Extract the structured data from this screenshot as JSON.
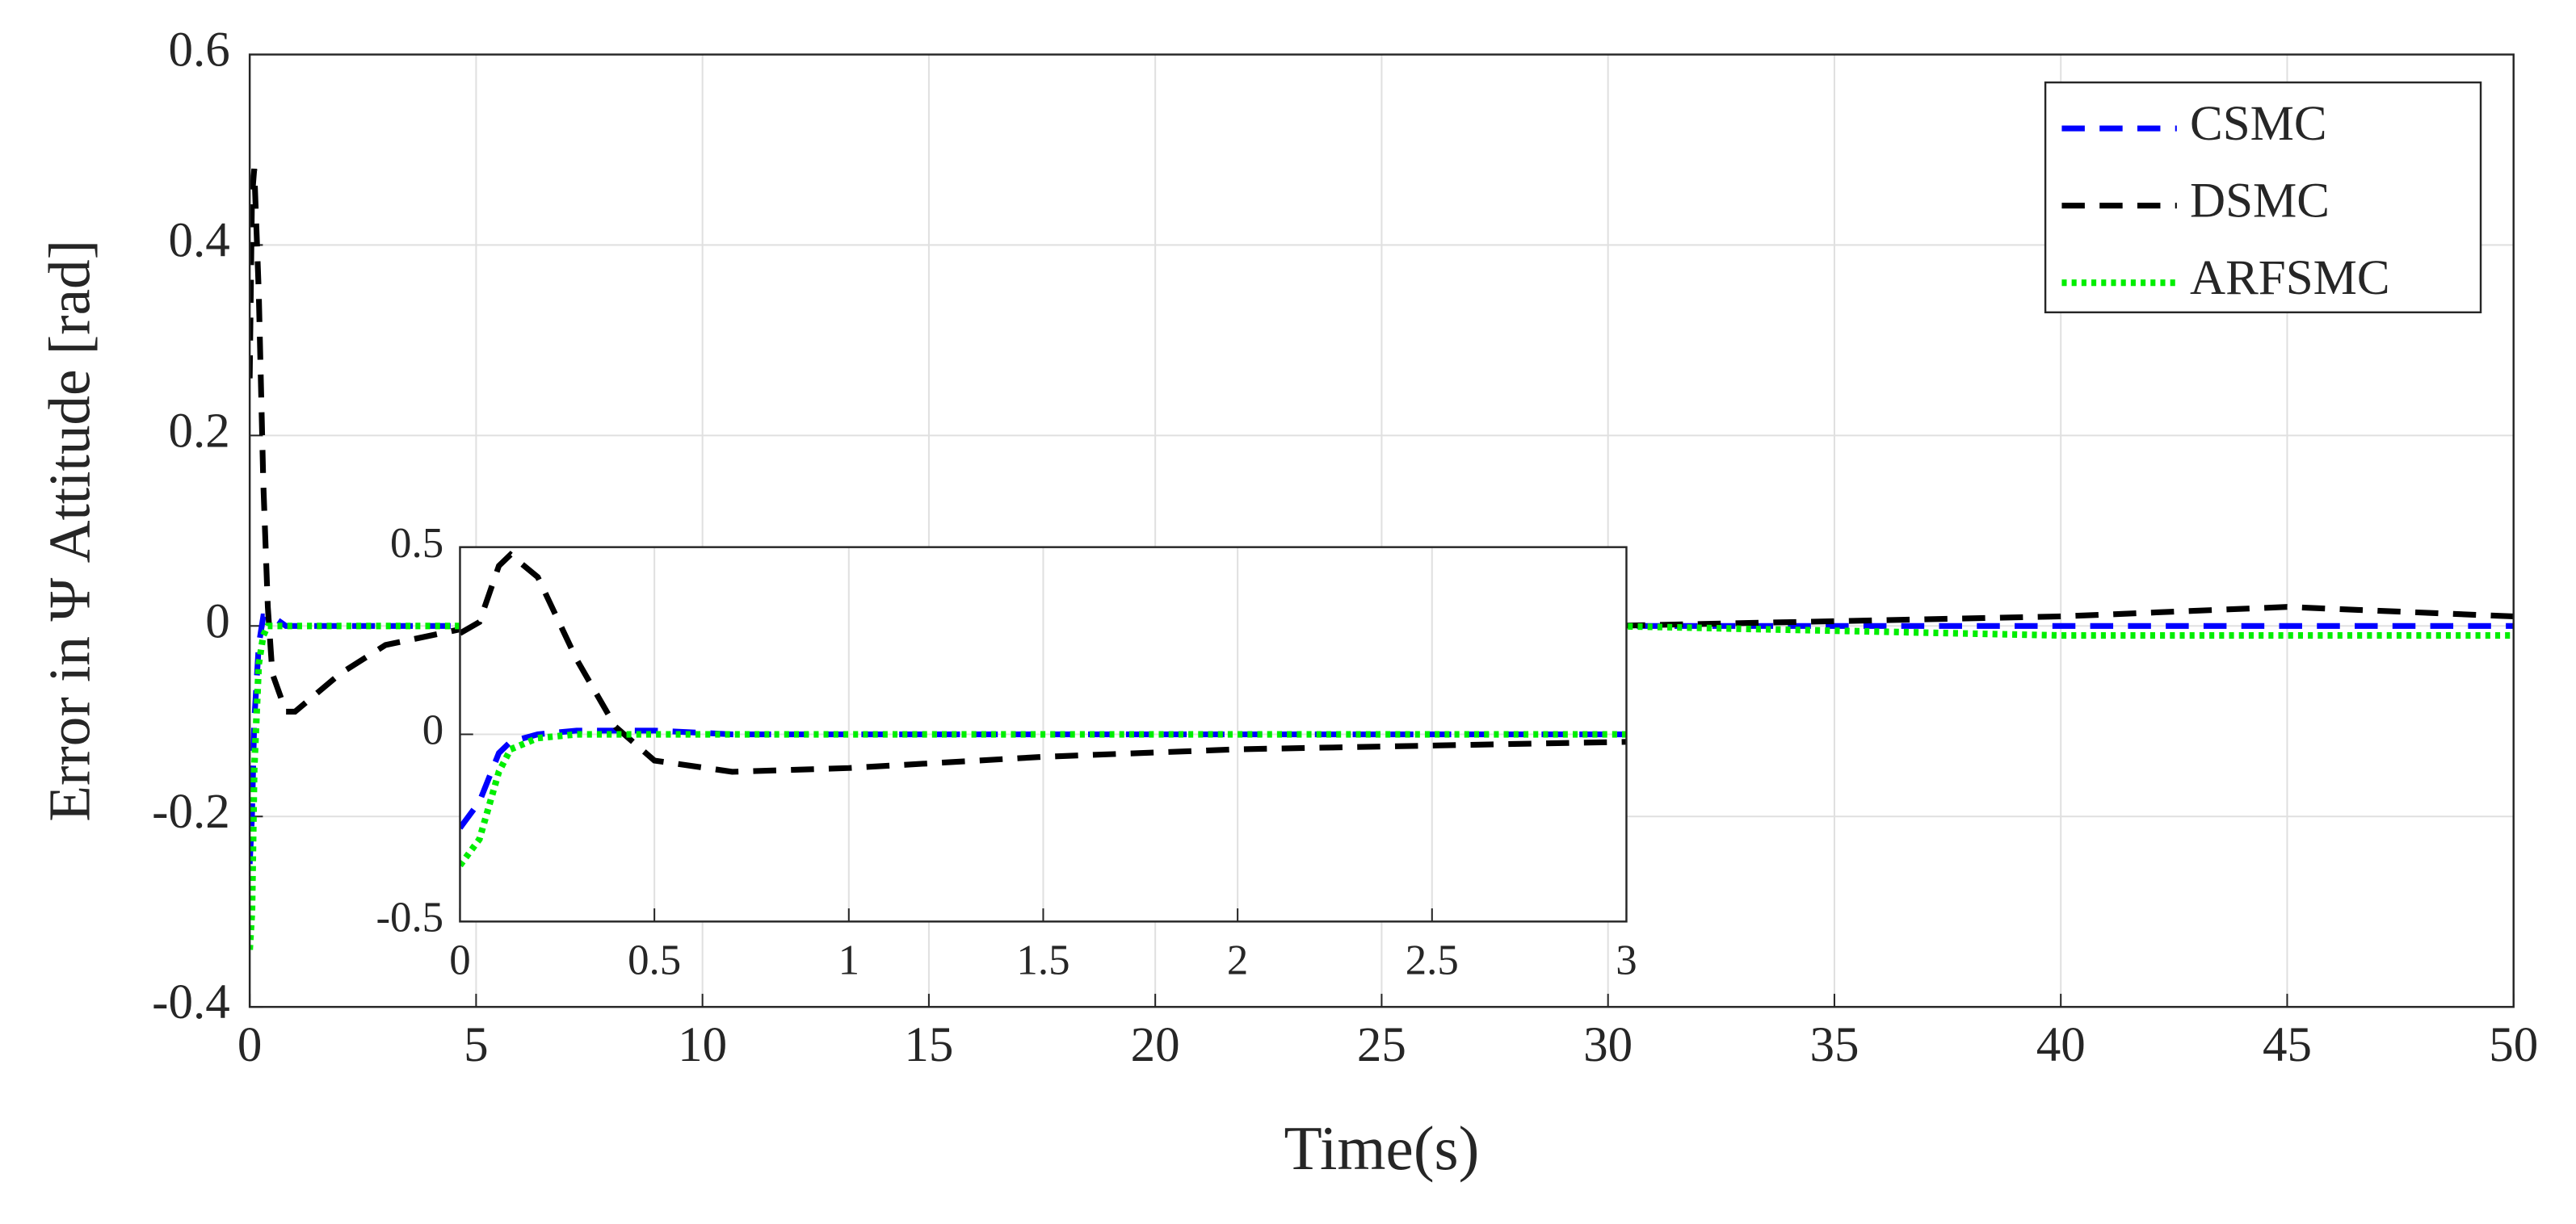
{
  "chart_data": [
    {
      "type": "line",
      "xlabel": "Time(s)",
      "ylabel": "Error in Ψ Attitude [rad]",
      "x": [
        0,
        0.05,
        0.1,
        0.2,
        0.3,
        0.4,
        0.5,
        0.8,
        1,
        2,
        3,
        5,
        10,
        20,
        30,
        40,
        45,
        50
      ],
      "series": [
        {
          "name": "CSMC",
          "color": "#0000ff",
          "style": "dashed",
          "values": [
            -0.25,
            -0.2,
            -0.1,
            -0.02,
            0.01,
            0.01,
            0.01,
            0,
            0,
            0,
            0,
            0,
            0,
            0,
            0,
            0,
            0,
            0
          ]
        },
        {
          "name": "DSMC",
          "color": "#000000",
          "style": "dashed",
          "values": [
            0.26,
            0.45,
            0.48,
            0.35,
            0.15,
            0.02,
            -0.05,
            -0.09,
            -0.09,
            -0.05,
            -0.02,
            0,
            0,
            0,
            0,
            0.01,
            0.02,
            0.01
          ]
        },
        {
          "name": "ARFSMC",
          "color": "#00ee00",
          "style": "dotted",
          "values": [
            -0.34,
            -0.3,
            -0.15,
            -0.04,
            -0.01,
            0,
            0,
            0,
            0,
            0,
            0,
            0,
            0,
            0,
            0,
            -0.01,
            -0.01,
            -0.01
          ]
        }
      ],
      "xlim": [
        0,
        50
      ],
      "ylim": [
        -0.4,
        0.6
      ],
      "xticks": [
        0,
        5,
        10,
        15,
        20,
        25,
        30,
        35,
        40,
        45,
        50
      ],
      "yticks": [
        -0.4,
        -0.2,
        0,
        0.2,
        0.4,
        0.6
      ],
      "grid": true,
      "legend": "upper right"
    },
    {
      "type": "line",
      "x": [
        0,
        0.05,
        0.1,
        0.13,
        0.2,
        0.3,
        0.4,
        0.5,
        0.7,
        1,
        1.5,
        2,
        2.5,
        3
      ],
      "series": [
        {
          "color": "#0000ff",
          "style": "dashed",
          "values": [
            -0.25,
            -0.18,
            -0.05,
            -0.02,
            0,
            0.01,
            0.01,
            0.01,
            0,
            0,
            0,
            0,
            0,
            0
          ]
        },
        {
          "color": "#000000",
          "style": "dashed",
          "values": [
            0.27,
            0.3,
            0.45,
            0.48,
            0.42,
            0.2,
            0.02,
            -0.07,
            -0.1,
            -0.09,
            -0.06,
            -0.04,
            -0.03,
            -0.02
          ]
        },
        {
          "color": "#00ee00",
          "style": "dotted",
          "values": [
            -0.35,
            -0.28,
            -0.1,
            -0.04,
            -0.01,
            0,
            0,
            0,
            0,
            0,
            0,
            0,
            0,
            0
          ]
        }
      ],
      "xlim": [
        0,
        3
      ],
      "ylim": [
        -0.5,
        0.5
      ],
      "xticks": [
        0,
        0.5,
        1,
        1.5,
        2,
        2.5,
        3
      ],
      "yticks": [
        -0.5,
        0,
        0.5
      ],
      "grid": true
    }
  ]
}
